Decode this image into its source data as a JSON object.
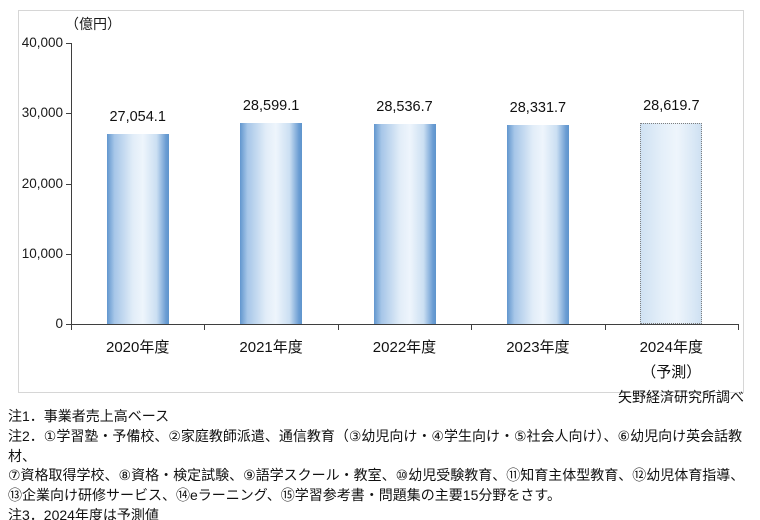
{
  "source": "矢野経済研究所調べ",
  "notes": [
    "注1．事業者売上高ベース",
    "注2．①学習塾・予備校、②家庭教師派遣、通信教育（③幼児向け・④学生向け・⑤社会人向け）、⑥幼児向け英会話教材、",
    "⑦資格取得学校、⑧資格・検定試験、⑨語学スクール・教室、⑩幼児受験教育、⑪知育主体型教育、⑫幼児体育指導、",
    "⑬企業向け研修サービス、⑭eラーニング、⑮学習参考書・問題集の主要15分野をさす。",
    "注3．2024年度は予測値"
  ],
  "chart_data": {
    "type": "bar",
    "unit_label": "（億円）",
    "unit": "億円",
    "categories": [
      "2020年度",
      "2021年度",
      "2022年度",
      "2023年度",
      "2024年度"
    ],
    "category_sublabels": [
      "",
      "",
      "",
      "",
      "（予測）"
    ],
    "values": [
      27054.1,
      28599.1,
      28536.7,
      28331.7,
      28619.7
    ],
    "value_labels": [
      "27,054.1",
      "28,599.1",
      "28,536.7",
      "28,331.7",
      "28,619.7"
    ],
    "forecast_index": 4,
    "ylim": [
      0,
      40000
    ],
    "y_ticks": [
      0,
      10000,
      20000,
      30000,
      40000
    ],
    "y_tick_labels": [
      "0",
      "10,000",
      "20,000",
      "30,000",
      "40,000"
    ],
    "grid": "off",
    "legend": "none",
    "colors": {
      "bar_edge": "#6196CE",
      "bar_center": "#EEF5FC",
      "forecast_fill": "#E4EFF9",
      "forecast_border": "#7F7F7F",
      "axis": "#3F3F3F",
      "frame_border": "#D6D6D6",
      "text": "#111111"
    }
  }
}
